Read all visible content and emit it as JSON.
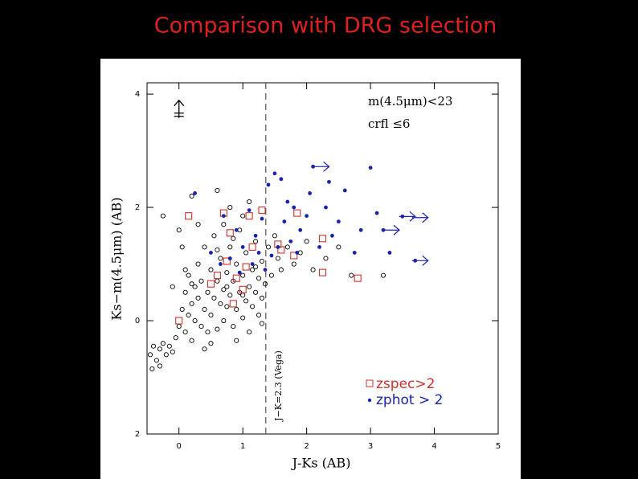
{
  "chart_data": {
    "type": "scatter",
    "title": "Comparison with DRG selection",
    "xlabel": "J-Ks (AB)",
    "ylabel": "Ks−m(4.5μm) (AB)",
    "annotations": [
      "m(4.5μm)<23",
      "crfl  ≤6"
    ],
    "threshold_label": "J−K=2.3 (Vega)",
    "threshold_x": 1.36,
    "xlim": [
      -0.5,
      5
    ],
    "ylim": [
      -2,
      4.2
    ],
    "xticks": [
      0,
      1,
      2,
      3,
      4,
      5
    ],
    "yticks": [
      4,
      2,
      0,
      {
        "value": -2,
        "label": "2"
      }
    ],
    "background": {
      "color": "#000000",
      "x": [
        -0.45,
        -0.4,
        -0.35,
        -0.3,
        -0.25,
        -0.2,
        -0.15,
        -0.1,
        -0.42,
        -0.3,
        -0.05,
        0,
        0.05,
        0.1,
        0.1,
        0.15,
        0.15,
        0.2,
        0.2,
        0.25,
        0.25,
        0.3,
        0.3,
        0.35,
        0.35,
        0.4,
        0.4,
        0.45,
        0.45,
        0.5,
        0.5,
        0.55,
        0.55,
        0.6,
        0.6,
        0.65,
        0.65,
        0.7,
        0.7,
        0.75,
        0.75,
        0.8,
        0.8,
        0.85,
        0.85,
        0.9,
        0.9,
        0.95,
        0.95,
        1.0,
        1.0,
        1.05,
        1.05,
        1.1,
        1.1,
        1.15,
        1.15,
        1.2,
        1.2,
        1.25,
        1.25,
        1.3,
        1.3,
        1.35,
        1.4,
        1.45,
        1.5,
        1.55,
        1.6,
        1.7,
        1.8,
        1.9,
        2.0,
        2.1,
        2.3,
        2.5,
        2.7,
        3.2,
        -0.25,
        0.0,
        0.2,
        0.6,
        0.8,
        1.1,
        0.05,
        0.1,
        -0.1,
        0.3,
        0.7,
        1.0,
        0.5,
        0.9,
        0.4,
        1.3,
        0.2,
        0.6,
        0.85,
        1.2,
        1.0,
        0.75
      ],
      "y": [
        -0.6,
        -0.45,
        -0.7,
        -0.5,
        -0.4,
        -0.6,
        -0.45,
        -0.55,
        -0.85,
        -0.8,
        -0.3,
        -0.1,
        0.2,
        0.5,
        -0.2,
        0.8,
        0.1,
        0.3,
        -0.35,
        0.6,
        0,
        1.0,
        0.4,
        -0.1,
        0.7,
        0.2,
        1.3,
        0.5,
        -0.2,
        0.9,
        0.1,
        0.4,
        1.5,
        0.7,
        -0.15,
        0.3,
        1.1,
        0.55,
        0,
        0.85,
        0.25,
        1.3,
        0.45,
        -0.1,
        0.7,
        0.2,
        1.0,
        0.5,
        1.6,
        0.8,
        0.05,
        0.35,
        1.2,
        0.6,
        -0.2,
        0.9,
        0.25,
        1.4,
        0.5,
        0.75,
        0.1,
        1.05,
        0.4,
        0.65,
        1.3,
        0.8,
        1.5,
        1.1,
        0.9,
        1.3,
        1.0,
        1.2,
        1.4,
        0.9,
        1.1,
        1.3,
        0.8,
        0.8,
        1.85,
        1.6,
        2.2,
        2.3,
        2.0,
        2.1,
        1.3,
        0.9,
        0.6,
        1.7,
        1.7,
        1.85,
        -0.4,
        -0.35,
        -0.5,
        -0.05,
        0.65,
        1.25,
        1.45,
        0.95,
        0.45,
        0.6
      ]
    },
    "series": [
      {
        "name": "zspec>2",
        "color": "#d0302c",
        "x": [
          0.15,
          0.7,
          0.8,
          1.1,
          1.3,
          1.85,
          2.25,
          2.25,
          2.8,
          0.0,
          0.6,
          0.75,
          0.9,
          1.05,
          1.15,
          1.55,
          1.6,
          1.8,
          0.5,
          1.0,
          0.85
        ],
        "y": [
          1.85,
          1.9,
          1.55,
          1.85,
          1.95,
          1.9,
          1.45,
          0.85,
          0.75,
          0.0,
          0.8,
          1.05,
          0.75,
          0.95,
          1.3,
          1.35,
          1.25,
          1.15,
          0.65,
          0.55,
          0.3
        ]
      },
      {
        "name": "zphot > 2",
        "color": "#1a22b0",
        "x": [
          0.25,
          0.7,
          0.9,
          1.1,
          1.2,
          1.3,
          1.4,
          1.5,
          1.6,
          1.65,
          1.7,
          1.75,
          1.8,
          1.9,
          2.0,
          2.05,
          2.1,
          2.2,
          2.3,
          2.4,
          2.5,
          2.6,
          2.75,
          2.85,
          3.0,
          3.1,
          3.2,
          3.3,
          3.5,
          3.7,
          0.5,
          0.8,
          1.0,
          1.15,
          1.25,
          1.35,
          1.45,
          1.55,
          0.65,
          0.95,
          2.35,
          1.85
        ],
        "y": [
          2.25,
          1.85,
          1.6,
          1.95,
          1.5,
          1.8,
          2.4,
          2.6,
          2.5,
          1.75,
          2.1,
          1.4,
          2.0,
          1.6,
          1.85,
          2.25,
          2.72,
          1.3,
          2.0,
          1.5,
          1.75,
          2.3,
          1.2,
          1.6,
          2.7,
          1.9,
          1.6,
          1.2,
          1.84,
          1.06,
          1.2,
          1.1,
          1.3,
          1.0,
          1.2,
          0.9,
          1.15,
          1.3,
          1.0,
          0.85,
          2.45,
          1.2
        ]
      }
    ],
    "upper_limits": {
      "x": [
        0
      ],
      "y": [
        3.75
      ]
    },
    "right_limits": {
      "x": [
        2.1,
        3.2,
        3.45,
        3.65,
        3.65
      ],
      "y": [
        2.72,
        1.6,
        1.84,
        1.82,
        1.06
      ]
    }
  }
}
